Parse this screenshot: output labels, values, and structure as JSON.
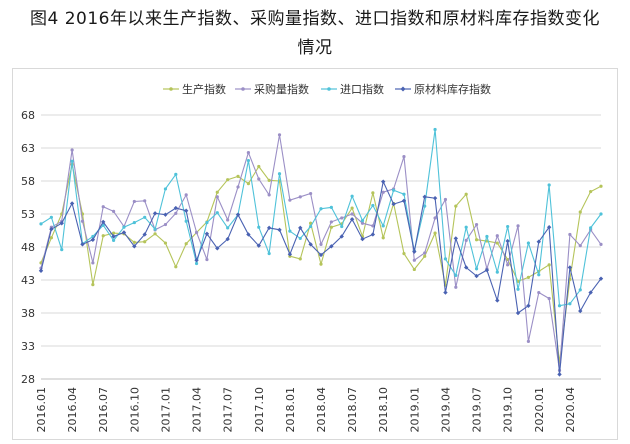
{
  "figure": {
    "title_line1": "图4  2016年以来生产指数、采购量指数、进口指数和原材料库存指数变化",
    "title_line2": "情况"
  },
  "chart_data": {
    "type": "line",
    "title": "图4  2016年以来生产指数、采购量指数、进口指数和原材料库存指数变化情况",
    "xlabel": "",
    "ylabel": "",
    "ylim": [
      28,
      68
    ],
    "yticks": [
      28,
      33,
      38,
      43,
      48,
      53,
      58,
      63,
      68
    ],
    "grid": "horizontal",
    "legend_position": "top",
    "x": [
      "2016.01",
      "2016.02",
      "2016.03",
      "2016.04",
      "2016.05",
      "2016.06",
      "2016.07",
      "2016.08",
      "2016.09",
      "2016.10",
      "2016.11",
      "2016.12",
      "2017.01",
      "2017.02",
      "2017.03",
      "2017.04",
      "2017.05",
      "2017.06",
      "2017.07",
      "2017.08",
      "2017.09",
      "2017.10",
      "2017.11",
      "2017.12",
      "2018.01",
      "2018.02",
      "2018.03",
      "2018.04",
      "2018.05",
      "2018.06",
      "2018.07",
      "2018.08",
      "2018.09",
      "2018.10",
      "2018.11",
      "2018.12",
      "2019.01",
      "2019.02",
      "2019.03",
      "2019.04",
      "2019.05",
      "2019.06",
      "2019.07",
      "2019.08",
      "2019.09",
      "2019.10",
      "2019.11",
      "2019.12",
      "2020.01",
      "2020.02",
      "2020.03",
      "2020.04",
      "2020.05",
      "2020.06",
      "2020.07"
    ],
    "xtick_labels": [
      "2016.01",
      "2016.04",
      "2016.07",
      "2016.10",
      "2017.01",
      "2017.04",
      "2017.07",
      "2017.10",
      "2018.01",
      "2018.04",
      "2018.07",
      "2018.10",
      "2019.01",
      "2019.04",
      "2019.07",
      "2019.10",
      "2020.01",
      "2020.04"
    ],
    "series": [
      {
        "name": "生产指数",
        "color": "#b5c45a",
        "marker": "dot",
        "values": [
          45.6,
          49.4,
          53.0,
          60.5,
          53.0,
          42.3,
          49.7,
          50.1,
          50.0,
          48.7,
          48.8,
          50.0,
          48.6,
          45.0,
          48.5,
          50.2,
          51.8,
          56.3,
          58.2,
          58.7,
          57.6,
          60.2,
          58.1,
          58.0,
          46.6,
          46.2,
          51.6,
          45.4,
          51.0,
          51.5,
          53.9,
          49.6,
          56.2,
          49.4,
          54.6,
          47.0,
          44.6,
          46.6,
          50.1,
          42.2,
          54.2,
          56.0,
          49.1,
          48.9,
          48.6,
          46.1,
          42.8,
          43.4,
          44.3,
          45.3,
          30.5,
          43.1,
          53.3,
          56.4,
          57.2
        ]
      },
      {
        "name": "采购量指数",
        "color": "#9b8fc6",
        "marker": "dot",
        "values": [
          44.8,
          51.0,
          51.9,
          62.7,
          51.9,
          45.6,
          54.1,
          53.4,
          51.1,
          54.9,
          55.0,
          50.6,
          51.4,
          53.1,
          55.9,
          50.2,
          46.1,
          55.6,
          52.1,
          57.1,
          62.3,
          58.3,
          55.9,
          65.0,
          55.1,
          55.6,
          56.1,
          48.4,
          51.8,
          52.4,
          53.0,
          51.6,
          51.2,
          56.3,
          56.8,
          61.7,
          46.0,
          47.1,
          52.4,
          55.2,
          41.9,
          49.0,
          51.4,
          44.7,
          49.7,
          45.3,
          51.2,
          33.7,
          41.1,
          40.2,
          29.3,
          49.9,
          48.2,
          50.6,
          48.4
        ]
      },
      {
        "name": "进口指数",
        "color": "#4fc2d9",
        "marker": "dot",
        "values": [
          51.5,
          52.5,
          47.6,
          61.0,
          48.5,
          49.6,
          51.3,
          49.0,
          51.0,
          51.7,
          52.5,
          50.7,
          56.8,
          59.0,
          51.9,
          45.5,
          51.7,
          53.2,
          50.9,
          52.9,
          61.1,
          51.0,
          47.0,
          59.1,
          50.4,
          49.3,
          51.1,
          53.8,
          54.0,
          51.1,
          55.7,
          52.0,
          54.3,
          51.2,
          56.6,
          56.0,
          47.4,
          54.2,
          65.8,
          46.2,
          43.7,
          51.0,
          44.7,
          49.6,
          44.2,
          51.1,
          41.6,
          48.6,
          43.8,
          57.4,
          39.1,
          39.4,
          41.5,
          50.9,
          53.0
        ]
      },
      {
        "name": "原材料库存指数",
        "color": "#4a62b2",
        "marker": "diamond",
        "values": [
          44.4,
          50.7,
          51.6,
          54.6,
          48.4,
          49.1,
          51.8,
          49.6,
          50.2,
          48.1,
          49.9,
          53.1,
          52.9,
          53.9,
          53.5,
          46.0,
          50.0,
          47.8,
          49.2,
          52.9,
          49.9,
          48.2,
          50.9,
          50.6,
          46.9,
          50.9,
          48.4,
          46.8,
          48.1,
          49.6,
          52.2,
          49.2,
          49.9,
          57.9,
          54.5,
          55.0,
          47.3,
          55.6,
          55.4,
          41.1,
          49.3,
          44.9,
          43.6,
          44.5,
          39.9,
          48.9,
          38.0,
          39.1,
          48.8,
          51.0,
          28.7,
          44.9,
          38.3,
          41.1,
          43.2
        ]
      }
    ]
  }
}
